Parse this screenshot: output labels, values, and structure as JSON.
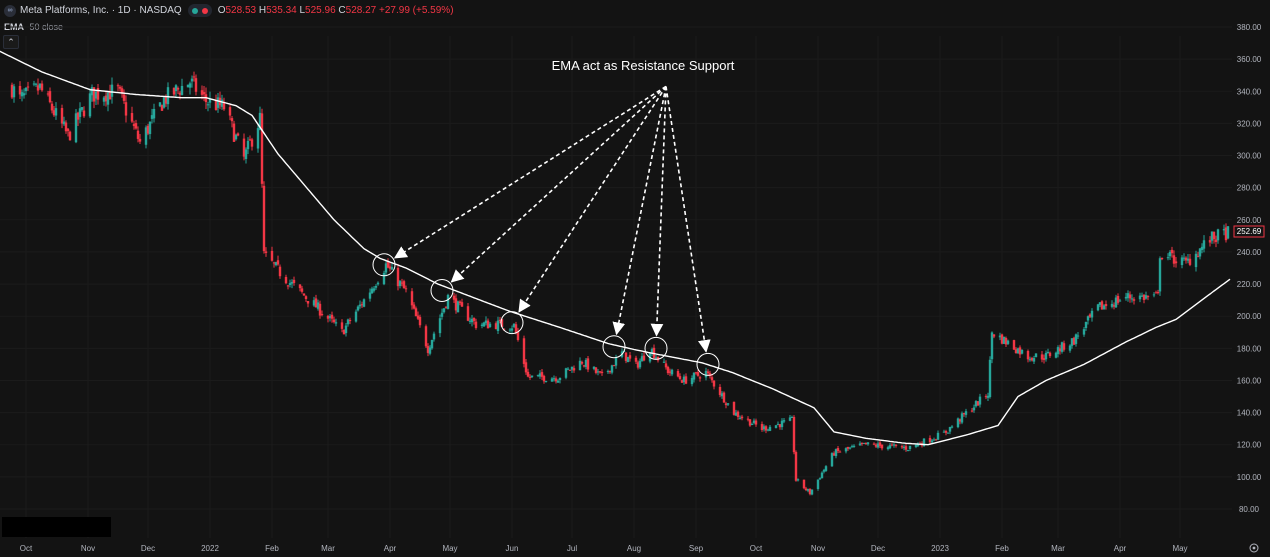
{
  "header": {
    "logo_text": "∞",
    "symbol_title": "Meta Platforms, Inc. · 1D · NASDAQ",
    "status_icons": [
      "green-dot-icon",
      "red-dot-icon"
    ],
    "ohlc": [
      {
        "label": "O",
        "value": "528.53"
      },
      {
        "label": "H",
        "value": "535.34"
      },
      {
        "label": "L",
        "value": "525.96"
      },
      {
        "label": "C",
        "value": "528.27"
      },
      {
        "label": "",
        "value": "+27.99 (+5.59%)"
      }
    ],
    "indicator_name": "EMA",
    "indicator_params": "50 close",
    "collapse_glyph": "⌃"
  },
  "colors": {
    "background": "#131313",
    "up": "#26a69a",
    "down": "#f23645",
    "ema": "#ffffff",
    "grid": "#1b1b1b"
  },
  "chart_data": {
    "type": "candlestick",
    "title": "Meta Platforms, Inc. · 1D · NASDAQ",
    "annotation": "EMA act as Resistance Support",
    "ylim": [
      73,
      384
    ],
    "y_ticks": [
      "380.00",
      "360.00",
      "340.00",
      "320.00",
      "300.00",
      "280.00",
      "260.00",
      "240.00",
      "220.00",
      "200.00",
      "180.00",
      "160.00",
      "140.00",
      "120.00",
      "100.00",
      "80.00"
    ],
    "x_labels": [
      "Oct",
      "Nov",
      "Dec",
      "2022",
      "Feb",
      "Mar",
      "Apr",
      "May",
      "Jun",
      "Jul",
      "Aug",
      "Sep",
      "Oct",
      "Nov",
      "Dec",
      "2023",
      "Feb",
      "Mar",
      "Apr",
      "May"
    ],
    "last_price": "252.69",
    "series": [
      {
        "name": "EMA 50 close",
        "points": [
          [
            "2021-09-22",
            366
          ],
          [
            "2021-10-15",
            352
          ],
          [
            "2021-11-08",
            341
          ],
          [
            "2021-12-01",
            338
          ],
          [
            "2021-12-24",
            336
          ],
          [
            "2022-01-05",
            336
          ],
          [
            "2022-01-20",
            331
          ],
          [
            "2022-01-28",
            325
          ],
          [
            "2022-02-10",
            301
          ],
          [
            "2022-02-25",
            279
          ],
          [
            "2022-03-10",
            260
          ],
          [
            "2022-03-25",
            242
          ],
          [
            "2022-04-02",
            236
          ],
          [
            "2022-04-15",
            230
          ],
          [
            "2022-05-01",
            220
          ],
          [
            "2022-05-20",
            211
          ],
          [
            "2022-06-06",
            203
          ],
          [
            "2022-07-01",
            193
          ],
          [
            "2022-07-25",
            183
          ],
          [
            "2022-08-08",
            179
          ],
          [
            "2022-08-20",
            176
          ],
          [
            "2022-09-10",
            171
          ],
          [
            "2022-09-25",
            165
          ],
          [
            "2022-10-15",
            155
          ],
          [
            "2022-11-05",
            143
          ],
          [
            "2022-11-15",
            128
          ],
          [
            "2022-12-01",
            124
          ],
          [
            "2022-12-20",
            121
          ],
          [
            "2023-01-01",
            120
          ],
          [
            "2023-01-20",
            126
          ],
          [
            "2023-02-05",
            132
          ],
          [
            "2023-02-15",
            150
          ],
          [
            "2023-03-01",
            160
          ],
          [
            "2023-03-20",
            170
          ],
          [
            "2023-04-10",
            184
          ],
          [
            "2023-04-25",
            193
          ],
          [
            "2023-05-05",
            198
          ],
          [
            "2023-05-20",
            212
          ],
          [
            "2023-06-01",
            223
          ]
        ]
      }
    ],
    "price_path": [
      [
        "2021-09-20",
        360
      ],
      [
        "2021-10-04",
        335
      ],
      [
        "2021-10-14",
        342
      ],
      [
        "2021-10-28",
        312
      ],
      [
        "2021-11-09",
        338
      ],
      [
        "2021-11-22",
        340
      ],
      [
        "2021-12-03",
        308
      ],
      [
        "2021-12-15",
        335
      ],
      [
        "2021-12-28",
        346
      ],
      [
        "2022-01-05",
        334
      ],
      [
        "2022-01-14",
        330
      ],
      [
        "2022-01-24",
        298
      ],
      [
        "2022-02-01",
        323
      ],
      [
        "2022-02-03",
        238
      ],
      [
        "2022-02-15",
        222
      ],
      [
        "2022-03-02",
        205
      ],
      [
        "2022-03-14",
        190
      ],
      [
        "2022-03-25",
        210
      ],
      [
        "2022-04-05",
        232
      ],
      [
        "2022-04-15",
        215
      ],
      [
        "2022-04-26",
        180
      ],
      [
        "2022-05-06",
        212
      ],
      [
        "2022-05-20",
        195
      ],
      [
        "2022-06-01",
        195
      ],
      [
        "2022-06-08",
        194
      ],
      [
        "2022-06-15",
        162
      ],
      [
        "2022-06-30",
        162
      ],
      [
        "2022-07-12",
        172
      ],
      [
        "2022-07-22",
        162
      ],
      [
        "2022-08-01",
        177
      ],
      [
        "2022-08-08",
        169
      ],
      [
        "2022-08-15",
        180
      ],
      [
        "2022-08-24",
        166
      ],
      [
        "2022-09-01",
        160
      ],
      [
        "2022-09-12",
        165
      ],
      [
        "2022-09-26",
        140
      ],
      [
        "2022-10-10",
        130
      ],
      [
        "2022-10-25",
        135
      ],
      [
        "2022-10-27",
        98
      ],
      [
        "2022-11-03",
        90
      ],
      [
        "2022-11-15",
        115
      ],
      [
        "2022-12-01",
        120
      ],
      [
        "2022-12-22",
        118
      ],
      [
        "2023-01-09",
        127
      ],
      [
        "2023-01-31",
        152
      ],
      [
        "2023-02-02",
        190
      ],
      [
        "2023-02-20",
        175
      ],
      [
        "2023-03-01",
        175
      ],
      [
        "2023-03-15",
        185
      ],
      [
        "2023-03-27",
        205
      ],
      [
        "2023-04-10",
        212
      ],
      [
        "2023-04-26",
        212
      ],
      [
        "2023-04-27",
        239
      ],
      [
        "2023-05-10",
        233
      ],
      [
        "2023-05-22",
        248
      ],
      [
        "2023-05-31",
        252
      ]
    ],
    "circles": [
      [
        "2022-04-04",
        232
      ],
      [
        "2022-05-03",
        216
      ],
      [
        "2022-06-07",
        196
      ],
      [
        "2022-07-28",
        181
      ],
      [
        "2022-08-18",
        180
      ],
      [
        "2022-09-13",
        170
      ]
    ],
    "annotation_origin": [
      "2022-08-23",
      343
    ]
  }
}
